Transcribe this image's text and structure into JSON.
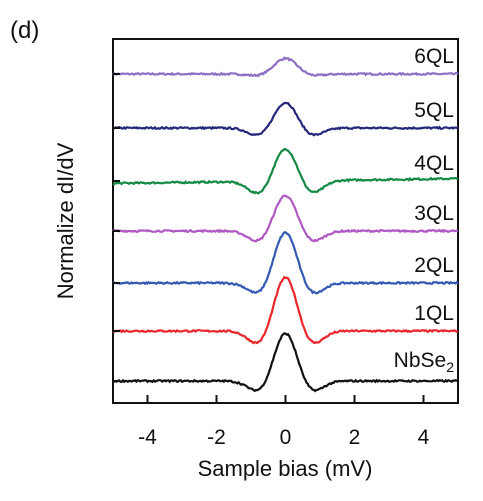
{
  "panel_label": "(d)",
  "chart_data": {
    "type": "line",
    "title": "",
    "xlabel": "Sample bias (mV)",
    "ylabel": "Normalize dI/dV",
    "xlim": [
      -5,
      5
    ],
    "xticks": [
      -4,
      -2,
      0,
      2,
      4
    ],
    "ylabel_note": "curves vertically offset; no y tick values printed",
    "grid": false,
    "legend": "none (each curve labeled at right end)",
    "series": [
      {
        "name": "6QL",
        "color": "#8e6fc4",
        "offset": 6,
        "peak_height": 0.33,
        "dip_depth": 0.04,
        "background_slope": 0.0
      },
      {
        "name": "5QL",
        "color": "#24277a",
        "offset": 5,
        "peak_height": 0.55,
        "dip_depth": 0.17,
        "background_slope": 0.0
      },
      {
        "name": "4QL",
        "color": "#148a45",
        "offset": 4,
        "peak_height": 0.7,
        "dip_depth": 0.28,
        "background_slope": 0.01
      },
      {
        "name": "3QL",
        "color": "#b058c3",
        "offset": 3,
        "peak_height": 0.77,
        "dip_depth": 0.24,
        "background_slope": 0.0
      },
      {
        "name": "2QL",
        "color": "#3359b3",
        "offset": 2,
        "peak_height": 1.08,
        "dip_depth": 0.25,
        "background_slope": 0.0
      },
      {
        "name": "1QL",
        "color": "#e8262b",
        "offset": 1,
        "peak_height": 1.15,
        "dip_depth": 0.3,
        "background_slope": 0.0
      },
      {
        "name": "NbSe2",
        "label_main": "NbSe",
        "label_sub": "2",
        "color": "#111111",
        "offset": 0,
        "peak_height": 1.02,
        "dip_depth": 0.24,
        "background_slope": 0.0
      }
    ]
  }
}
